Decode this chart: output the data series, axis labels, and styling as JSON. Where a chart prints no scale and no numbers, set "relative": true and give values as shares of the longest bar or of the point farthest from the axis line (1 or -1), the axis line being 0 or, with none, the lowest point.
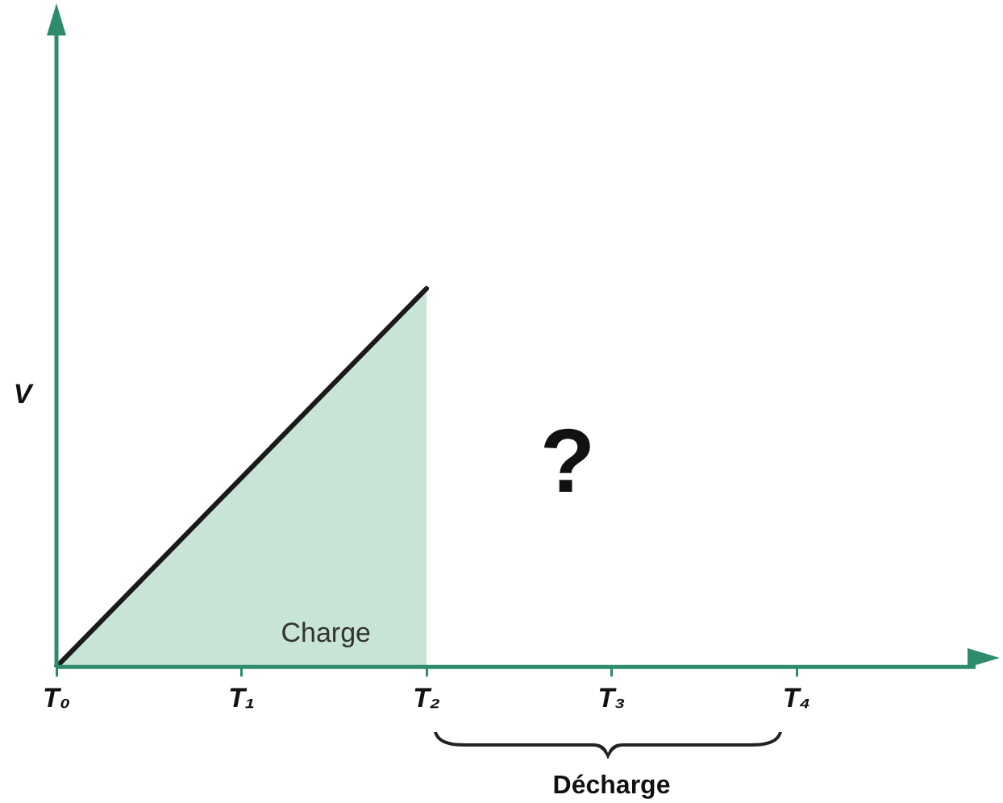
{
  "chart_data": {
    "type": "area",
    "relative": true,
    "ylabel": "V",
    "categories": [
      "T₀",
      "T₁",
      "T₂",
      "T₃",
      "T₄"
    ],
    "series": [
      {
        "type": "area",
        "color": "#c8e4d6",
        "values": [
          0,
          0.5,
          1,
          null,
          null
        ]
      }
    ],
    "annotations": [
      "Charge",
      "?",
      "Décharge"
    ],
    "grid": false,
    "legend": false,
    "marker": "none",
    "line_style": "solid"
  }
}
